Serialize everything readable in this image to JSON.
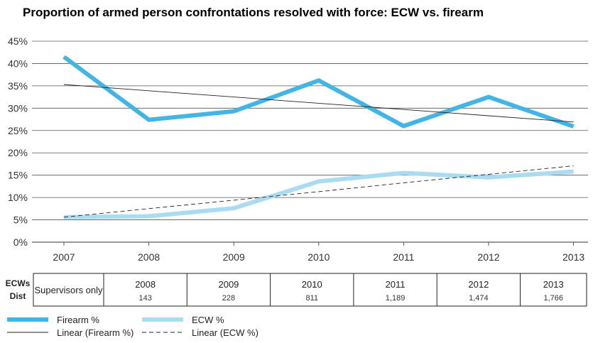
{
  "chart_data": {
    "type": "line",
    "title": "Proportion of armed person confrontations resolved with force: ECW vs. firearm",
    "categories": [
      "2007",
      "2008",
      "2009",
      "2010",
      "2011",
      "2012",
      "2013"
    ],
    "ylim": [
      0,
      45
    ],
    "yticks": [
      "0%",
      "5%",
      "10%",
      "15%",
      "20%",
      "25%",
      "30%",
      "35%",
      "40%",
      "45%"
    ],
    "grid": true,
    "series": [
      {
        "name": "Firearm %",
        "values": [
          41.5,
          27.4,
          29.3,
          36.2,
          26.0,
          32.5,
          25.9
        ],
        "color": "#41b6e6",
        "style": "thick"
      },
      {
        "name": "ECW %",
        "values": [
          5.6,
          5.8,
          7.6,
          13.6,
          15.5,
          14.5,
          15.8
        ],
        "color": "#a9dcf2",
        "style": "thick"
      },
      {
        "name": "Linear (Firearm %)",
        "values": [
          35.3,
          33.9,
          32.5,
          31.1,
          29.7,
          28.3,
          26.9
        ],
        "color": "#222222",
        "style": "solid-thin"
      },
      {
        "name": "Linear (ECW %)",
        "values": [
          5.6,
          7.5,
          9.4,
          11.3,
          13.3,
          15.2,
          17.1
        ],
        "color": "#222222",
        "style": "dashed-thin"
      }
    ],
    "legend_position": "bottom"
  },
  "table": {
    "header_line1": "ECWs",
    "header_line2": "Dist",
    "first_cell": "Supervisors only",
    "columns": [
      {
        "year": "2008",
        "value": "143"
      },
      {
        "year": "2009",
        "value": "228"
      },
      {
        "year": "2010",
        "value": "811"
      },
      {
        "year": "2011",
        "value": "1,189"
      },
      {
        "year": "2012",
        "value": "1,474"
      },
      {
        "year": "2013",
        "value": "1,766"
      }
    ]
  }
}
